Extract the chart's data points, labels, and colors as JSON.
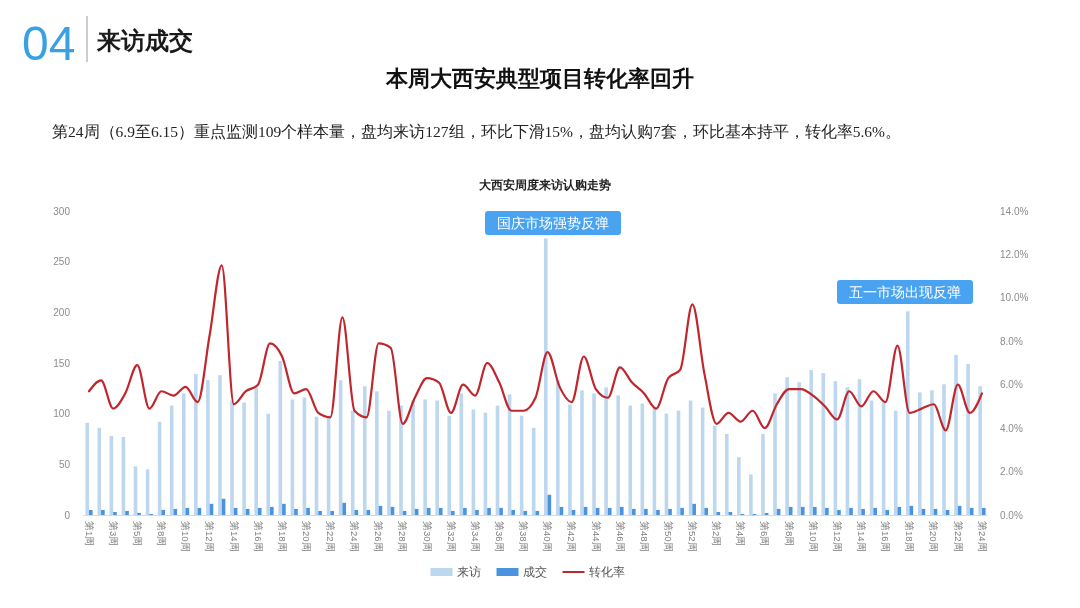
{
  "chart_data": {
    "type": "bar",
    "title": "本周大西安典型项目转化率回升",
    "subtitle": "第24周（6.9至6.15）重点监测109个样本量，盘均来访127组，环比下滑15%，盘均认购7套，环比基本持平，转化率5.6%。",
    "annotations": [
      "04",
      "来访成交",
      "大西安周度来访认购走势",
      "国庆市场强势反弹",
      "五一市场出现反弹"
    ],
    "categories": [
      "第1周",
      null,
      "第3周",
      null,
      "第5周",
      null,
      "第8周",
      null,
      "第10周",
      null,
      "第12周",
      null,
      "第14周",
      null,
      "第16周",
      null,
      "第18周",
      null,
      "第20周",
      null,
      "第22周",
      null,
      "第24周",
      null,
      "第26周",
      null,
      "第28周",
      null,
      "第30周",
      null,
      "第32周",
      null,
      "第34周",
      null,
      "第36周",
      null,
      "第38周",
      null,
      "第40周",
      null,
      "第42周",
      null,
      "第44周",
      null,
      "第46周",
      null,
      "第48周",
      null,
      "第50周",
      null,
      "第52周",
      null,
      "第2周",
      null,
      "第4周",
      null,
      "第6周",
      null,
      "第8周",
      null,
      "第10周",
      null,
      "第12周",
      null,
      "第14周",
      null,
      "第16周",
      null,
      "第18周",
      null,
      "第20周",
      null,
      "第22周",
      null,
      "第24周"
    ],
    "series": [
      {
        "name": "来访",
        "color": "#bdd7ee",
        "values": [
          91,
          86,
          78,
          77,
          48,
          45,
          92,
          108,
          120,
          139,
          133,
          138,
          113,
          111,
          126,
          100,
          152,
          114,
          116,
          97,
          98,
          133,
          103,
          127,
          122,
          103,
          108,
          113,
          114,
          113,
          98,
          120,
          104,
          101,
          108,
          119,
          98,
          86,
          273,
          133,
          109,
          123,
          120,
          126,
          118,
          108,
          110,
          105,
          100,
          103,
          113,
          106,
          88,
          80,
          57,
          40,
          80,
          120,
          136,
          131,
          143,
          140,
          132,
          126,
          134,
          113,
          111,
          103,
          201,
          121,
          123,
          129,
          158,
          149,
          127
        ]
      },
      {
        "name": "成交",
        "color": "#4b93de",
        "values": [
          5,
          5,
          3,
          4,
          2,
          1,
          5,
          6,
          7,
          7,
          11,
          16,
          7,
          6,
          7,
          8,
          11,
          6,
          7,
          4,
          4,
          12,
          5,
          5,
          9,
          8,
          4,
          6,
          7,
          7,
          4,
          7,
          5,
          7,
          7,
          5,
          4,
          4,
          20,
          8,
          5,
          8,
          7,
          7,
          8,
          6,
          6,
          5,
          6,
          7,
          11,
          7,
          3,
          3,
          1,
          1,
          2,
          6,
          8,
          8,
          8,
          7,
          5,
          7,
          6,
          7,
          5,
          8,
          9,
          6,
          6,
          5,
          9,
          7,
          7
        ]
      },
      {
        "name": "转化率",
        "type": "line",
        "axis": "y2",
        "color": "#c0262d",
        "values": [
          5.7,
          6.2,
          4.9,
          5.6,
          6.9,
          4.9,
          5.7,
          5.5,
          5.9,
          5.2,
          8.3,
          11.5,
          5.1,
          5.7,
          6.0,
          7.9,
          7.3,
          5.6,
          5.8,
          4.7,
          4.5,
          9.1,
          4.8,
          4.5,
          7.9,
          7.7,
          4.2,
          5.4,
          6.3,
          6.1,
          4.7,
          6.0,
          5.5,
          7.0,
          6.1,
          4.8,
          4.8,
          5.4,
          7.5,
          5.9,
          5.2,
          7.3,
          5.8,
          5.4,
          6.8,
          6.1,
          5.6,
          4.9,
          6.3,
          6.7,
          9.7,
          6.5,
          4.2,
          4.7,
          4.3,
          4.8,
          4.0,
          5.1,
          5.8,
          5.8,
          5.5,
          5.0,
          4.4,
          5.7,
          5.0,
          5.7,
          5.2,
          7.8,
          4.7,
          4.9,
          5.1,
          3.9,
          6.0,
          4.7,
          5.6
        ]
      }
    ],
    "ylim": [
      0,
      300
    ],
    "yticks": [
      0,
      50,
      100,
      150,
      200,
      250,
      300
    ],
    "y2lim": [
      0,
      14
    ],
    "y2ticks": [
      {
        "value": 0,
        "label": "0.0%"
      },
      {
        "value": 2,
        "label": "2.0%"
      },
      {
        "value": 4,
        "label": "4.0%"
      },
      {
        "value": 6,
        "label": "6.0%"
      },
      {
        "value": 8,
        "label": "8.0%"
      },
      {
        "value": 10,
        "label": "10.0%"
      },
      {
        "value": 12,
        "label": "12.0%"
      },
      {
        "value": 14,
        "label": "14.0%"
      }
    ],
    "legend": "bottom"
  }
}
